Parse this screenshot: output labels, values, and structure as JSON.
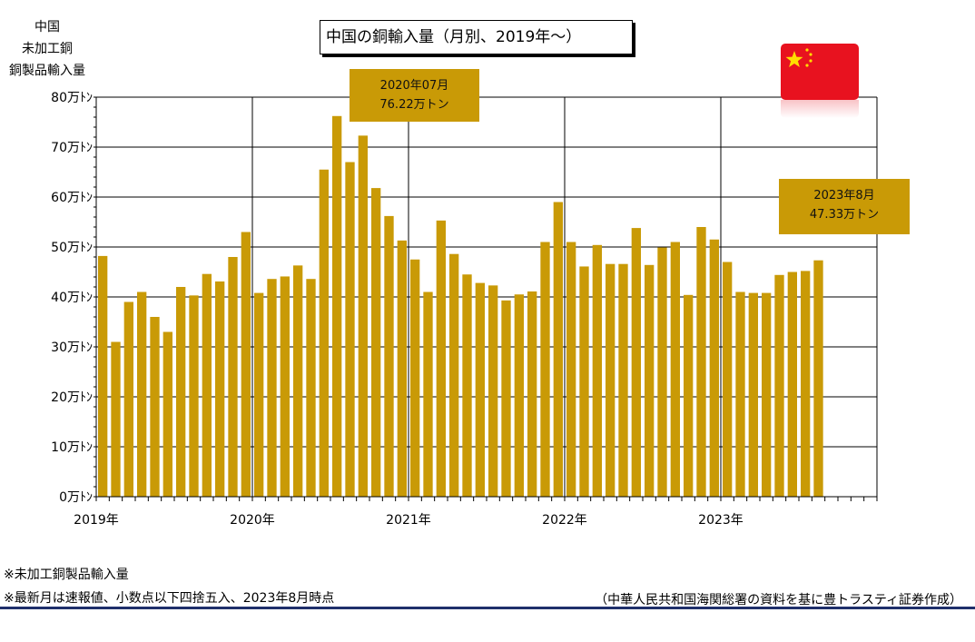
{
  "title": "中国の銅輸入量（月別、2019年～）",
  "y_axis_title": [
    "中国",
    "未加工銅",
    "銅製品輸入量"
  ],
  "callouts": [
    {
      "line1": "2020年07月",
      "line2": "76.22万トン"
    },
    {
      "line1": "2023年8月",
      "line2": "47.33万トン"
    }
  ],
  "notes": [
    "※未加工銅製品輸入量",
    "※最新月は速報値、小数点以下四捨五入、2023年8月時点"
  ],
  "source": "（中華人民共和国海関総署の資料を基に豊トラスティ証券作成）",
  "colors": {
    "bar": "#c99a06",
    "callout": "#c99a06",
    "flag": "#e8121f",
    "rule": "#1f2f6b"
  },
  "chart_data": {
    "type": "bar",
    "ylabel": "中国 未加工銅 銅製品輸入量",
    "ylim": [
      0,
      80
    ],
    "yticks": [
      "0万ﾄﾝ",
      "10万ﾄﾝ",
      "20万ﾄﾝ",
      "30万ﾄﾝ",
      "40万ﾄﾝ",
      "50万ﾄﾝ",
      "60万ﾄﾝ",
      "70万ﾄﾝ",
      "80万ﾄﾝ"
    ],
    "xticks": [
      "2019年",
      "2020年",
      "2021年",
      "2022年",
      "2023年"
    ],
    "grid": true,
    "categories": [
      "2019-01",
      "2019-02",
      "2019-03",
      "2019-04",
      "2019-05",
      "2019-06",
      "2019-07",
      "2019-08",
      "2019-09",
      "2019-10",
      "2019-11",
      "2019-12",
      "2020-01",
      "2020-02",
      "2020-03",
      "2020-04",
      "2020-05",
      "2020-06",
      "2020-07",
      "2020-08",
      "2020-09",
      "2020-10",
      "2020-11",
      "2020-12",
      "2021-01",
      "2021-02",
      "2021-03",
      "2021-04",
      "2021-05",
      "2021-06",
      "2021-07",
      "2021-08",
      "2021-09",
      "2021-10",
      "2021-11",
      "2021-12",
      "2022-01",
      "2022-02",
      "2022-03",
      "2022-04",
      "2022-05",
      "2022-06",
      "2022-07",
      "2022-08",
      "2022-09",
      "2022-10",
      "2022-11",
      "2022-12",
      "2023-01",
      "2023-02",
      "2023-03",
      "2023-04",
      "2023-05",
      "2023-06",
      "2023-07",
      "2023-08"
    ],
    "values": [
      48.2,
      31.0,
      39.0,
      41.0,
      36.0,
      33.0,
      42.0,
      40.3,
      44.6,
      43.1,
      48.0,
      53.0,
      40.8,
      43.6,
      44.1,
      46.3,
      43.6,
      65.5,
      76.22,
      67.0,
      72.3,
      61.8,
      56.2,
      51.3,
      47.5,
      41.0,
      55.3,
      48.6,
      44.5,
      42.8,
      42.3,
      39.3,
      40.5,
      41.1,
      51.0,
      59.0,
      51.0,
      46.1,
      50.4,
      46.6,
      46.6,
      53.8,
      46.4,
      49.9,
      51.0,
      40.4,
      54.0,
      51.5,
      47.0,
      41.0,
      40.8,
      40.8,
      44.4,
      45.0,
      45.2,
      47.33
    ]
  }
}
